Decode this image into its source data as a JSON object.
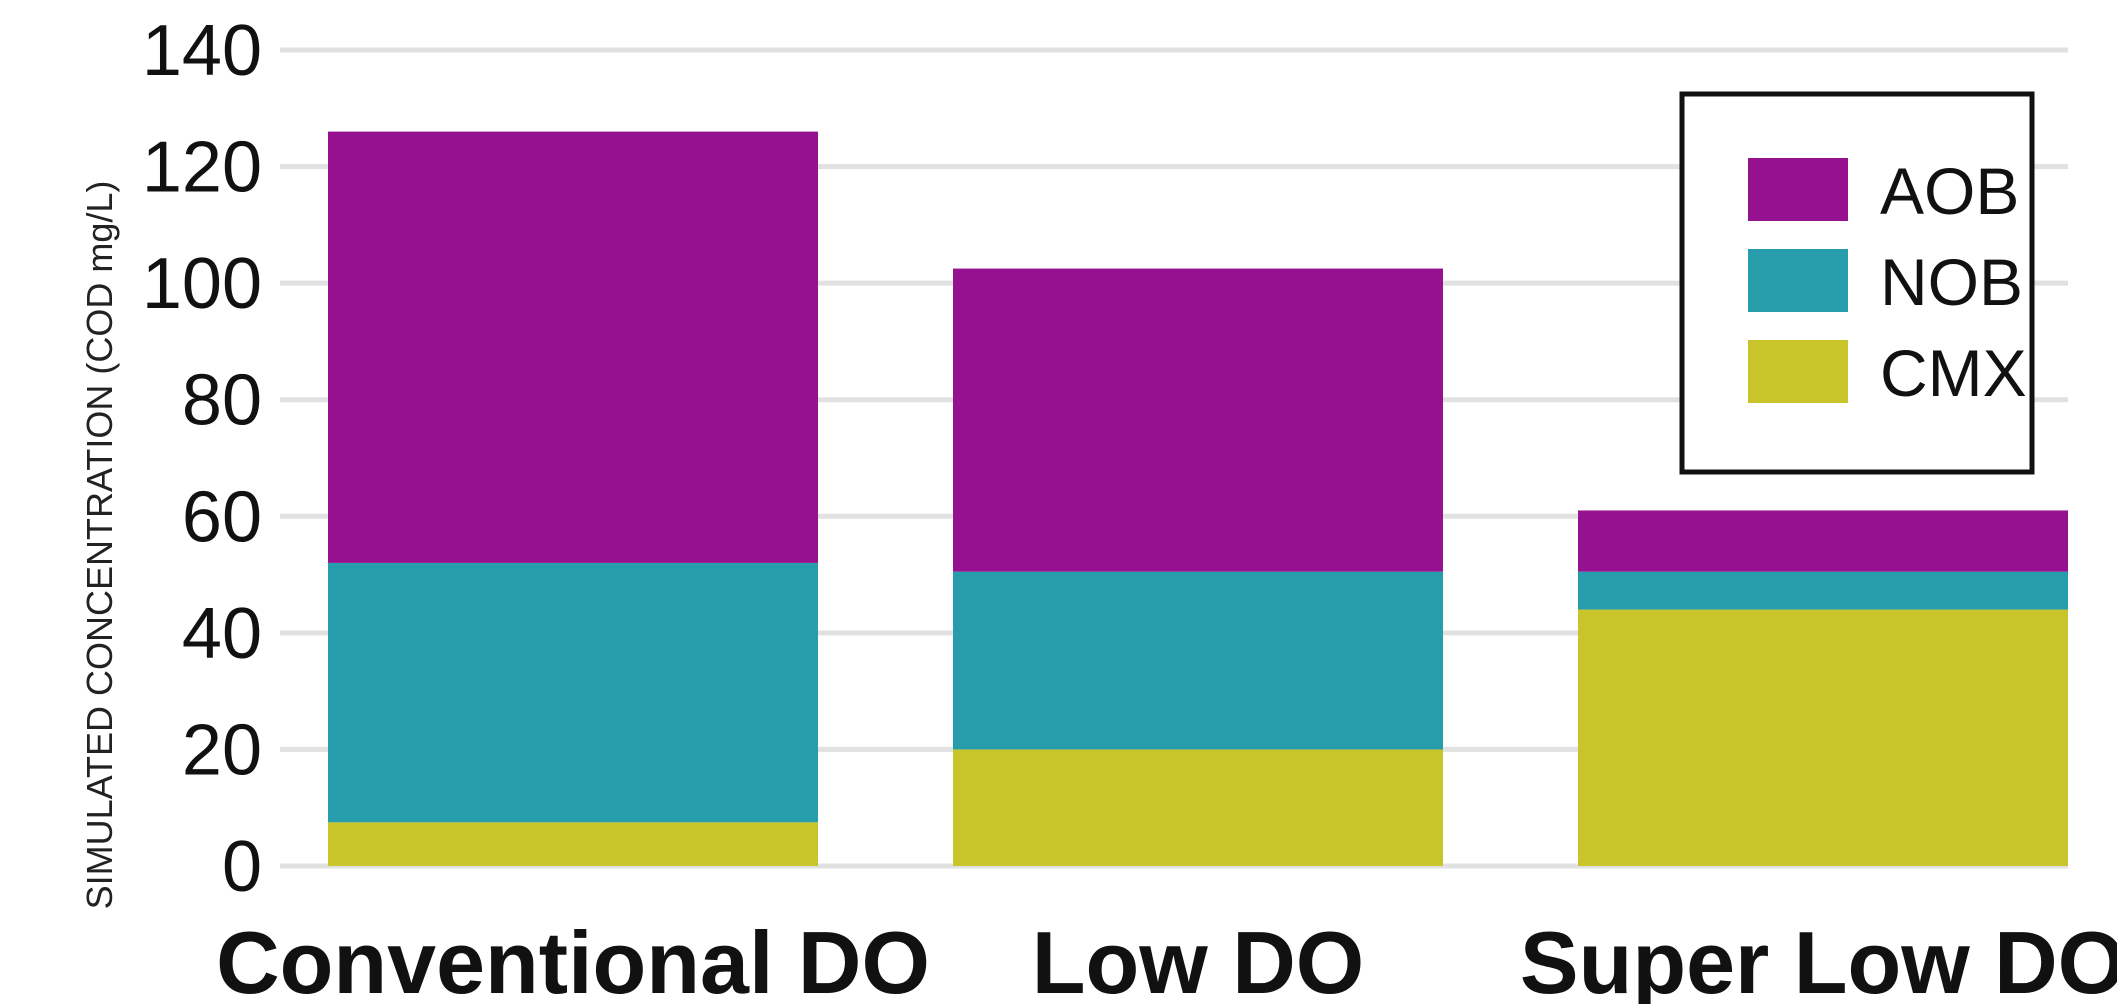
{
  "chart_data": {
    "type": "bar",
    "stacked": true,
    "categories": [
      "Conventional DO",
      "Low DO",
      "Super Low DO"
    ],
    "series": [
      {
        "name": "CMX",
        "values": [
          7.5,
          20,
          44
        ],
        "color": "#c8c52a"
      },
      {
        "name": "NOB",
        "values": [
          44.5,
          30.5,
          6.5
        ],
        "color": "#279dab"
      },
      {
        "name": "AOB",
        "values": [
          74,
          52,
          10.5
        ],
        "color": "#95118f"
      }
    ],
    "legend_order": [
      "AOB",
      "NOB",
      "CMX"
    ],
    "title": "",
    "xlabel": "",
    "ylabel": "SIMULATED CONCENTRATION (COD mg/L)",
    "ylim": [
      0,
      140
    ],
    "yticks": [
      0,
      20,
      40,
      60,
      80,
      100,
      120,
      140
    ],
    "grid": true,
    "legend_position": "top-right"
  }
}
